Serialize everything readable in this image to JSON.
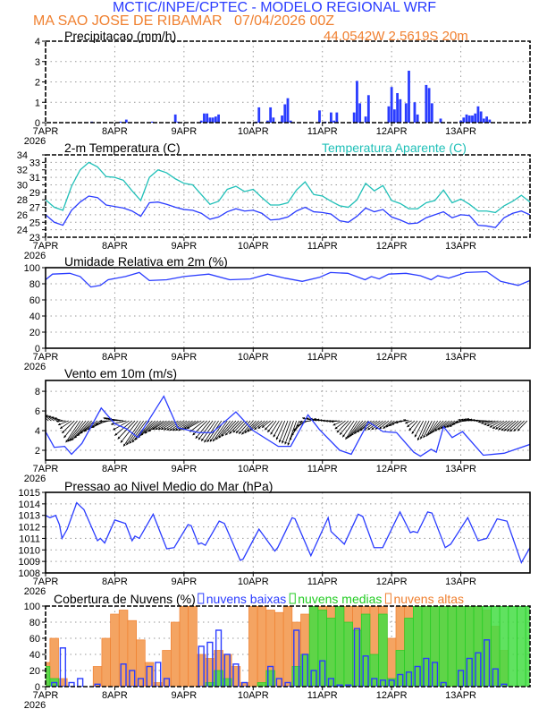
{
  "header": {
    "title": "MCTIC/INPE/CPTEC - MODELO REGIONAL WRF",
    "location_line": "MA SAO JOSE DE RIBAMAR   07/04/2026 00Z",
    "coords": "44.0542W 2.5619S 20m"
  },
  "colors": {
    "blue": "#2a3cff",
    "cyan": "#20c0b8",
    "orange": "#f08030",
    "orange_fill": "#f4a462",
    "green": "#22cc22",
    "green_fill": "#44dd44",
    "grid": "#999999"
  },
  "x_axis": {
    "ticks": [
      "7APR",
      "8APR",
      "9APR",
      "10APR",
      "11APR",
      "12APR",
      "13APR"
    ],
    "year": "2026",
    "hours_total": 168
  },
  "chart_data": [
    {
      "type": "bar",
      "title": "Precipitacao (mm/h)",
      "ylim": [
        0,
        4
      ],
      "yticks": [
        0,
        1,
        2,
        3,
        4
      ],
      "grid": true,
      "bars": [
        [
          16,
          0.05
        ],
        [
          26,
          0.05
        ],
        [
          28,
          0.15
        ],
        [
          37,
          0.05
        ],
        [
          45,
          0.4
        ],
        [
          46,
          0.05
        ],
        [
          54,
          0.1
        ],
        [
          55,
          0.45
        ],
        [
          56,
          0.45
        ],
        [
          57,
          0.25
        ],
        [
          58,
          0.25
        ],
        [
          59,
          0.3
        ],
        [
          60,
          0.4
        ],
        [
          73,
          0.05
        ],
        [
          74,
          0.75
        ],
        [
          77,
          0.1
        ],
        [
          78,
          0.75
        ],
        [
          79,
          0.25
        ],
        [
          81,
          0.05
        ],
        [
          82,
          0.35
        ],
        [
          83,
          0.9
        ],
        [
          84,
          1.2
        ],
        [
          85,
          0.1
        ],
        [
          95,
          0.6
        ],
        [
          97,
          0.05
        ],
        [
          99,
          0.5
        ],
        [
          100,
          0.1
        ],
        [
          101,
          0.5
        ],
        [
          107,
          0.5
        ],
        [
          108,
          2.05
        ],
        [
          109,
          0.95
        ],
        [
          111,
          0.3
        ],
        [
          112,
          1.35
        ],
        [
          119,
          0.8
        ],
        [
          120,
          1.75
        ],
        [
          121,
          0.65
        ],
        [
          122,
          1.45
        ],
        [
          123,
          1.15
        ],
        [
          125,
          0.95
        ],
        [
          126,
          2.55
        ],
        [
          128,
          1.0
        ],
        [
          129,
          0.4
        ],
        [
          132,
          1.85
        ],
        [
          133,
          1.7
        ],
        [
          134,
          0.95
        ],
        [
          137,
          0.2
        ],
        [
          144,
          0.1
        ],
        [
          145,
          0.25
        ],
        [
          146,
          0.4
        ],
        [
          147,
          0.35
        ],
        [
          148,
          0.35
        ],
        [
          149,
          0.45
        ],
        [
          150,
          0.8
        ],
        [
          151,
          0.55
        ],
        [
          152,
          0.2
        ],
        [
          153,
          0.3
        ],
        [
          154,
          0.15
        ]
      ]
    },
    {
      "type": "line",
      "title": "2-m Temperatura (C)",
      "legend2": "Temperatura Aparente (C)",
      "ylim": [
        23,
        34
      ],
      "yticks": [
        23,
        24,
        25,
        26,
        27,
        28,
        29,
        30,
        31,
        32,
        33,
        34
      ],
      "grid": true,
      "step_hours": 3,
      "series": [
        {
          "name": "2-m Temperatura (C)",
          "values": [
            26.0,
            25.0,
            24.6,
            26.6,
            27.7,
            28.5,
            28.3,
            27.3,
            27.1,
            26.9,
            26.5,
            25.8,
            27.6,
            27.7,
            27.4,
            27.0,
            26.7,
            26.6,
            26.2,
            25.4,
            25.7,
            26.4,
            26.8,
            26.5,
            26.6,
            26.2,
            25.3,
            25.4,
            25.7,
            26.5,
            27.0,
            26.4,
            26.3,
            26.1,
            25.2,
            25.0,
            25.8,
            26.9,
            26.4,
            26.7,
            25.7,
            25.3,
            24.8,
            24.9,
            25.6,
            26.0,
            26.4,
            25.6,
            26.0,
            25.9,
            24.6,
            24.5,
            24.3,
            25.6,
            26.2,
            26.5,
            26.0
          ]
        },
        {
          "name": "Temperatura Aparente (C)",
          "values": [
            28.0,
            27.0,
            26.6,
            29.8,
            32.0,
            33.0,
            32.4,
            31.1,
            31.0,
            30.6,
            29.2,
            27.9,
            31.0,
            32.0,
            31.6,
            30.8,
            30.2,
            30.0,
            28.7,
            27.4,
            27.8,
            29.4,
            29.8,
            29.1,
            29.4,
            28.3,
            27.3,
            27.3,
            27.6,
            29.3,
            30.4,
            28.7,
            28.5,
            27.8,
            27.2,
            27.0,
            28.0,
            30.2,
            29.2,
            29.9,
            27.9,
            27.5,
            26.8,
            26.8,
            27.6,
            27.9,
            29.3,
            27.6,
            28.1,
            27.4,
            26.5,
            26.5,
            26.3,
            27.2,
            27.8,
            28.6,
            27.7
          ]
        }
      ]
    },
    {
      "type": "line",
      "title": "Umidade Relativa em 2m (%)",
      "ylim": [
        0,
        100
      ],
      "yticks": [
        0,
        20,
        40,
        60,
        80,
        100
      ],
      "grid": true,
      "points": [
        [
          0,
          85
        ],
        [
          2.4,
          92
        ],
        [
          8.4,
          93
        ],
        [
          12,
          89
        ],
        [
          15.7,
          76
        ],
        [
          19,
          78
        ],
        [
          21.7,
          85
        ],
        [
          27.7,
          89
        ],
        [
          32.5,
          94
        ],
        [
          36,
          84
        ],
        [
          42,
          85
        ],
        [
          48,
          89
        ],
        [
          56.6,
          92
        ],
        [
          63.9,
          85
        ],
        [
          71,
          86
        ],
        [
          77,
          92
        ],
        [
          83,
          87
        ],
        [
          89,
          83
        ],
        [
          95,
          88
        ],
        [
          98.8,
          94
        ],
        [
          104.8,
          93
        ],
        [
          110.8,
          85
        ],
        [
          113,
          89
        ],
        [
          115.7,
          86
        ],
        [
          119,
          92
        ],
        [
          125,
          93
        ],
        [
          130,
          90
        ],
        [
          133.7,
          85
        ],
        [
          136,
          90
        ],
        [
          139.8,
          87
        ],
        [
          145.8,
          94
        ],
        [
          153,
          95
        ],
        [
          157.8,
          83
        ],
        [
          163.9,
          78
        ],
        [
          168,
          84
        ]
      ]
    },
    {
      "type": "line",
      "title": "Vento em 10m (m/s)",
      "ylim": [
        1,
        9.1
      ],
      "yticks": [
        2,
        4,
        6,
        8
      ],
      "grid": true,
      "speed": [
        [
          0,
          3.9
        ],
        [
          3,
          2.3
        ],
        [
          6.6,
          2.4
        ],
        [
          9,
          1.6
        ],
        [
          12.6,
          2.7
        ],
        [
          19.3,
          6.3
        ],
        [
          24,
          4.7
        ],
        [
          28,
          4.2
        ],
        [
          32,
          3.3
        ],
        [
          41,
          7.5
        ],
        [
          45.8,
          4.3
        ],
        [
          53,
          3.8
        ],
        [
          57.8,
          3.8
        ],
        [
          66,
          5.9
        ],
        [
          72,
          4.0
        ],
        [
          80.7,
          2.4
        ],
        [
          85,
          2.4
        ],
        [
          91,
          5.6
        ],
        [
          95,
          4.1
        ],
        [
          102,
          2.0
        ],
        [
          106,
          1.6
        ],
        [
          112,
          4.9
        ],
        [
          117,
          3.9
        ],
        [
          121.7,
          3.8
        ],
        [
          127.7,
          1.8
        ],
        [
          130,
          1.4
        ],
        [
          133.7,
          2.1
        ],
        [
          135.5,
          1.8
        ],
        [
          138,
          4.4
        ],
        [
          141,
          3.3
        ],
        [
          144.6,
          3.9
        ],
        [
          151.8,
          1.5
        ],
        [
          159,
          1.7
        ],
        [
          168,
          2.6
        ]
      ],
      "vectors_step_hours": 3,
      "vector_base": 5,
      "vectors": [
        [
          -2,
          0.7
        ],
        [
          -3,
          0.6
        ],
        [
          -3,
          0.3
        ],
        [
          -4,
          -0.8
        ],
        [
          -5,
          -2.2
        ],
        [
          -6,
          -2.0
        ],
        [
          -6,
          -1.3
        ],
        [
          -5,
          -0.7
        ],
        [
          -4,
          0.3
        ],
        [
          -5,
          0.2
        ],
        [
          -6,
          -1.5
        ],
        [
          -6,
          -2.6
        ],
        [
          -6,
          -2.2
        ],
        [
          -6,
          -1.5
        ],
        [
          -5,
          -0.9
        ],
        [
          -5,
          -0.9
        ],
        [
          -5,
          -1.0
        ],
        [
          -5,
          -1.0
        ],
        [
          -5,
          -0.8
        ],
        [
          -5,
          -1.8
        ],
        [
          -5,
          -2.2
        ],
        [
          -5,
          -2.1
        ],
        [
          -5,
          -1.6
        ],
        [
          -4,
          -1.2
        ],
        [
          -4,
          -1.4
        ],
        [
          -4,
          -1.0
        ],
        [
          -3,
          -0.7
        ],
        [
          -3,
          -1.4
        ],
        [
          -3,
          -2.2
        ],
        [
          -3,
          -2.5
        ],
        [
          -4,
          -1.0
        ],
        [
          -4,
          0.3
        ],
        [
          -3,
          0.2
        ],
        [
          -3,
          0.0
        ],
        [
          -3,
          -0.1
        ],
        [
          -4,
          -1.2
        ],
        [
          -4,
          -1.9
        ],
        [
          -5,
          -1.5
        ],
        [
          -5,
          -1.0
        ],
        [
          -4,
          -0.9
        ],
        [
          -3,
          -0.8
        ],
        [
          -3,
          -0.4
        ],
        [
          -2,
          0.1
        ],
        [
          -3,
          -1.0
        ],
        [
          -3,
          -2.0
        ],
        [
          -3,
          -1.6
        ],
        [
          -4,
          -1.2
        ],
        [
          -4,
          -0.8
        ],
        [
          -4,
          -0.6
        ],
        [
          -4,
          0.1
        ],
        [
          -4,
          0.2
        ],
        [
          -4,
          0.0
        ],
        [
          -4,
          -0.4
        ],
        [
          -4,
          -0.8
        ],
        [
          -4,
          -1.0
        ],
        [
          -4,
          -1.1
        ],
        [
          -3,
          -1.0
        ]
      ]
    },
    {
      "type": "line",
      "title": "Pressao ao Nivel Medio do Mar (hPa)",
      "ylim": [
        1008,
        1015
      ],
      "yticks": [
        1008,
        1009,
        1010,
        1011,
        1012,
        1013,
        1014,
        1015
      ],
      "grid": true,
      "points": [
        [
          0,
          1013.0
        ],
        [
          1.5,
          1012.8
        ],
        [
          3.5,
          1013.0
        ],
        [
          4.8,
          1012.2
        ],
        [
          5.7,
          1011.0
        ],
        [
          7.5,
          1011.8
        ],
        [
          10.8,
          1014.1
        ],
        [
          12,
          1013.8
        ],
        [
          13.3,
          1013.5
        ],
        [
          18,
          1010.8
        ],
        [
          19,
          1011.0
        ],
        [
          20.5,
          1010.6
        ],
        [
          24,
          1012.6
        ],
        [
          27.7,
          1012.3
        ],
        [
          30,
          1010.8
        ],
        [
          31,
          1011.2
        ],
        [
          32.5,
          1011.0
        ],
        [
          37.3,
          1013.1
        ],
        [
          42,
          1010.1
        ],
        [
          44.6,
          1010.2
        ],
        [
          49.4,
          1012.2
        ],
        [
          50.5,
          1012.1
        ],
        [
          53,
          1010.5
        ],
        [
          54,
          1010.6
        ],
        [
          55.4,
          1010.4
        ],
        [
          60.2,
          1012.5
        ],
        [
          62,
          1012.3
        ],
        [
          67.5,
          1009.1
        ],
        [
          68.5,
          1009.2
        ],
        [
          74,
          1011.8
        ],
        [
          79.5,
          1009.9
        ],
        [
          80.5,
          1010.2
        ],
        [
          85.5,
          1012.8
        ],
        [
          86.5,
          1012.7
        ],
        [
          92,
          1009.5
        ],
        [
          98,
          1012.8
        ],
        [
          99,
          1011.6
        ],
        [
          103.6,
          1010.5
        ],
        [
          108.4,
          1013.1
        ],
        [
          110,
          1012.9
        ],
        [
          113.9,
          1010.2
        ],
        [
          116.9,
          1010.2
        ],
        [
          122.9,
          1013.3
        ],
        [
          126.5,
          1011.5
        ],
        [
          127.5,
          1011.6
        ],
        [
          129,
          1011.5
        ],
        [
          132.5,
          1013.3
        ],
        [
          134,
          1013.2
        ],
        [
          138.6,
          1010.2
        ],
        [
          140.5,
          1010.5
        ],
        [
          146.4,
          1012.8
        ],
        [
          150,
          1010.8
        ],
        [
          153,
          1011.0
        ],
        [
          156.6,
          1012.7
        ],
        [
          160,
          1012.5
        ],
        [
          165,
          1008.9
        ],
        [
          168,
          1010.2
        ]
      ]
    },
    {
      "type": "bar",
      "title": "Cobertura de Nuvens (%)",
      "ylim": [
        0,
        100
      ],
      "yticks": [
        0,
        20,
        40,
        60,
        80,
        100
      ],
      "grid": true,
      "step_hours": 3,
      "legend": [
        "nuvens baixas",
        "nuvens medias",
        "nuvens altas"
      ],
      "series": [
        {
          "name": "nuvens altas",
          "values": [
            30,
            60,
            10,
            0,
            0,
            0,
            25,
            60,
            90,
            95,
            82,
            58,
            30,
            5,
            45,
            80,
            100,
            100,
            40,
            35,
            45,
            40,
            25,
            5,
            100,
            100,
            95,
            92,
            100,
            80,
            90,
            100,
            100,
            100,
            100,
            100,
            100,
            100,
            100,
            100,
            60,
            100,
            100,
            100,
            100,
            100,
            100,
            100,
            100,
            100,
            100,
            95,
            75,
            45,
            0,
            0,
            0
          ]
        },
        {
          "name": "nuvens medias",
          "values": [
            25,
            10,
            0,
            0,
            0,
            0,
            0,
            0,
            0,
            0,
            0,
            0,
            0,
            0,
            0,
            0,
            0,
            0,
            0,
            5,
            20,
            10,
            0,
            0,
            0,
            5,
            20,
            0,
            0,
            25,
            40,
            100,
            95,
            85,
            100,
            80,
            70,
            90,
            40,
            90,
            10,
            45,
            85,
            100,
            100,
            100,
            100,
            100,
            100,
            100,
            100,
            100,
            100,
            100,
            100,
            100,
            100
          ]
        },
        {
          "name": "nuvens baixas",
          "values": [
            0,
            5,
            48,
            5,
            10,
            0,
            3,
            0,
            0,
            28,
            20,
            10,
            25,
            30,
            10,
            0,
            0,
            0,
            50,
            55,
            70,
            40,
            28,
            5,
            0,
            0,
            25,
            10,
            5,
            70,
            40,
            20,
            32,
            10,
            2,
            2,
            72,
            38,
            10,
            8,
            8,
            15,
            18,
            25,
            35,
            30,
            5,
            0,
            20,
            35,
            42,
            58,
            22,
            3,
            0,
            0,
            0
          ]
        }
      ]
    }
  ]
}
